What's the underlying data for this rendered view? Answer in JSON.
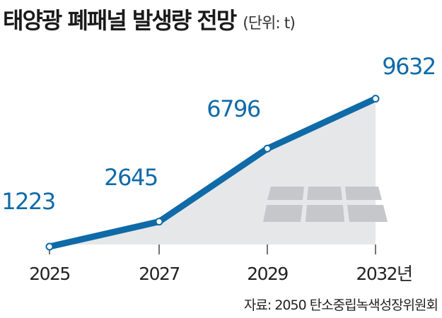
{
  "header": {
    "title": "태양광 폐패널 발생량 전망",
    "unit": "(단위: t)"
  },
  "source": "자료: 2050 탄소중립녹색성장위원회",
  "colors": {
    "line": "#0f6aa8",
    "label": "#0f6aa8",
    "area": "#e6e7e9",
    "panel": "#c5c7ca"
  },
  "icons": [
    "solar-panel-icon"
  ],
  "chart_data": {
    "type": "area",
    "x": [
      "2025",
      "2027",
      "2029",
      "2032년"
    ],
    "values": [
      1223,
      2645,
      6796,
      9632
    ],
    "data_labels": [
      "1223",
      "2645",
      "6796",
      "9632"
    ],
    "title": "태양광 폐패널 발생량 전망",
    "ylabel": "",
    "xlabel": "",
    "grid": false,
    "legend": "none"
  }
}
